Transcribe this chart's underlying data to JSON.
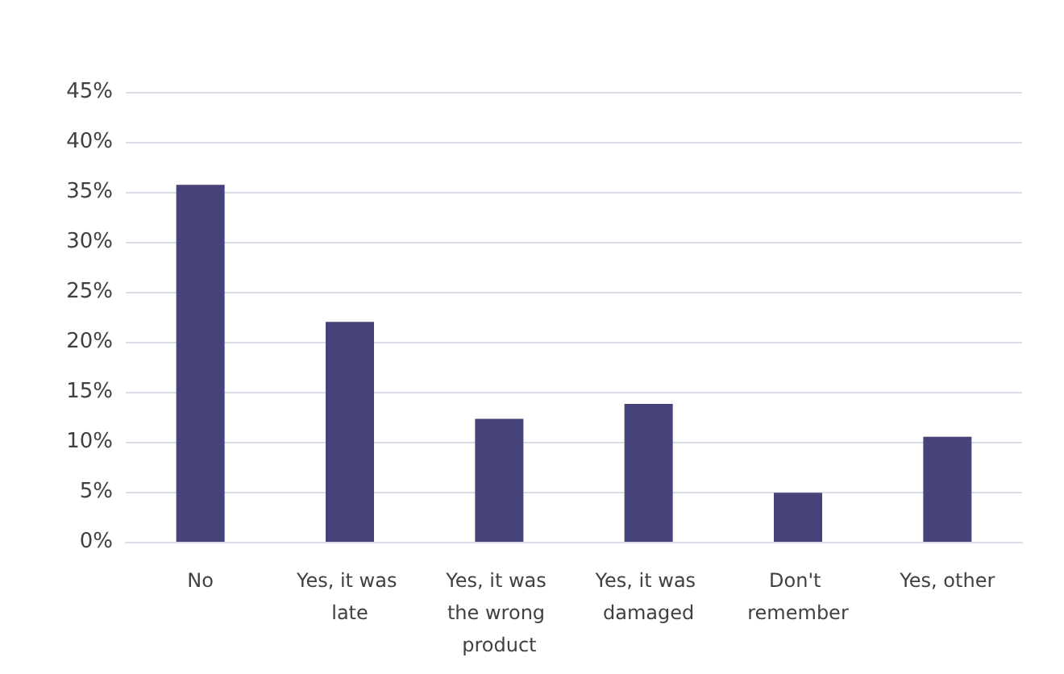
{
  "chart_data": {
    "type": "bar",
    "categories": [
      "No",
      "Yes, it was late",
      "Yes, it was the wrong product",
      "Yes, it was damaged",
      "Don't remember",
      "Yes, other"
    ],
    "values": [
      35.7,
      22.0,
      12.3,
      13.8,
      4.9,
      10.5
    ],
    "color": "#46437a",
    "ylim": [
      0,
      45
    ],
    "yticks": [
      {
        "value": 0,
        "label": "0%"
      },
      {
        "value": 5,
        "label": "5%"
      },
      {
        "value": 10,
        "label": "10%"
      },
      {
        "value": 15,
        "label": "15%"
      },
      {
        "value": 20,
        "label": "20%"
      },
      {
        "value": 25,
        "label": "25%"
      },
      {
        "value": 30,
        "label": "30%"
      },
      {
        "value": 35,
        "label": "35%"
      },
      {
        "value": 40,
        "label": "40%"
      },
      {
        "value": 45,
        "label": "45%"
      }
    ],
    "grid": "y"
  }
}
